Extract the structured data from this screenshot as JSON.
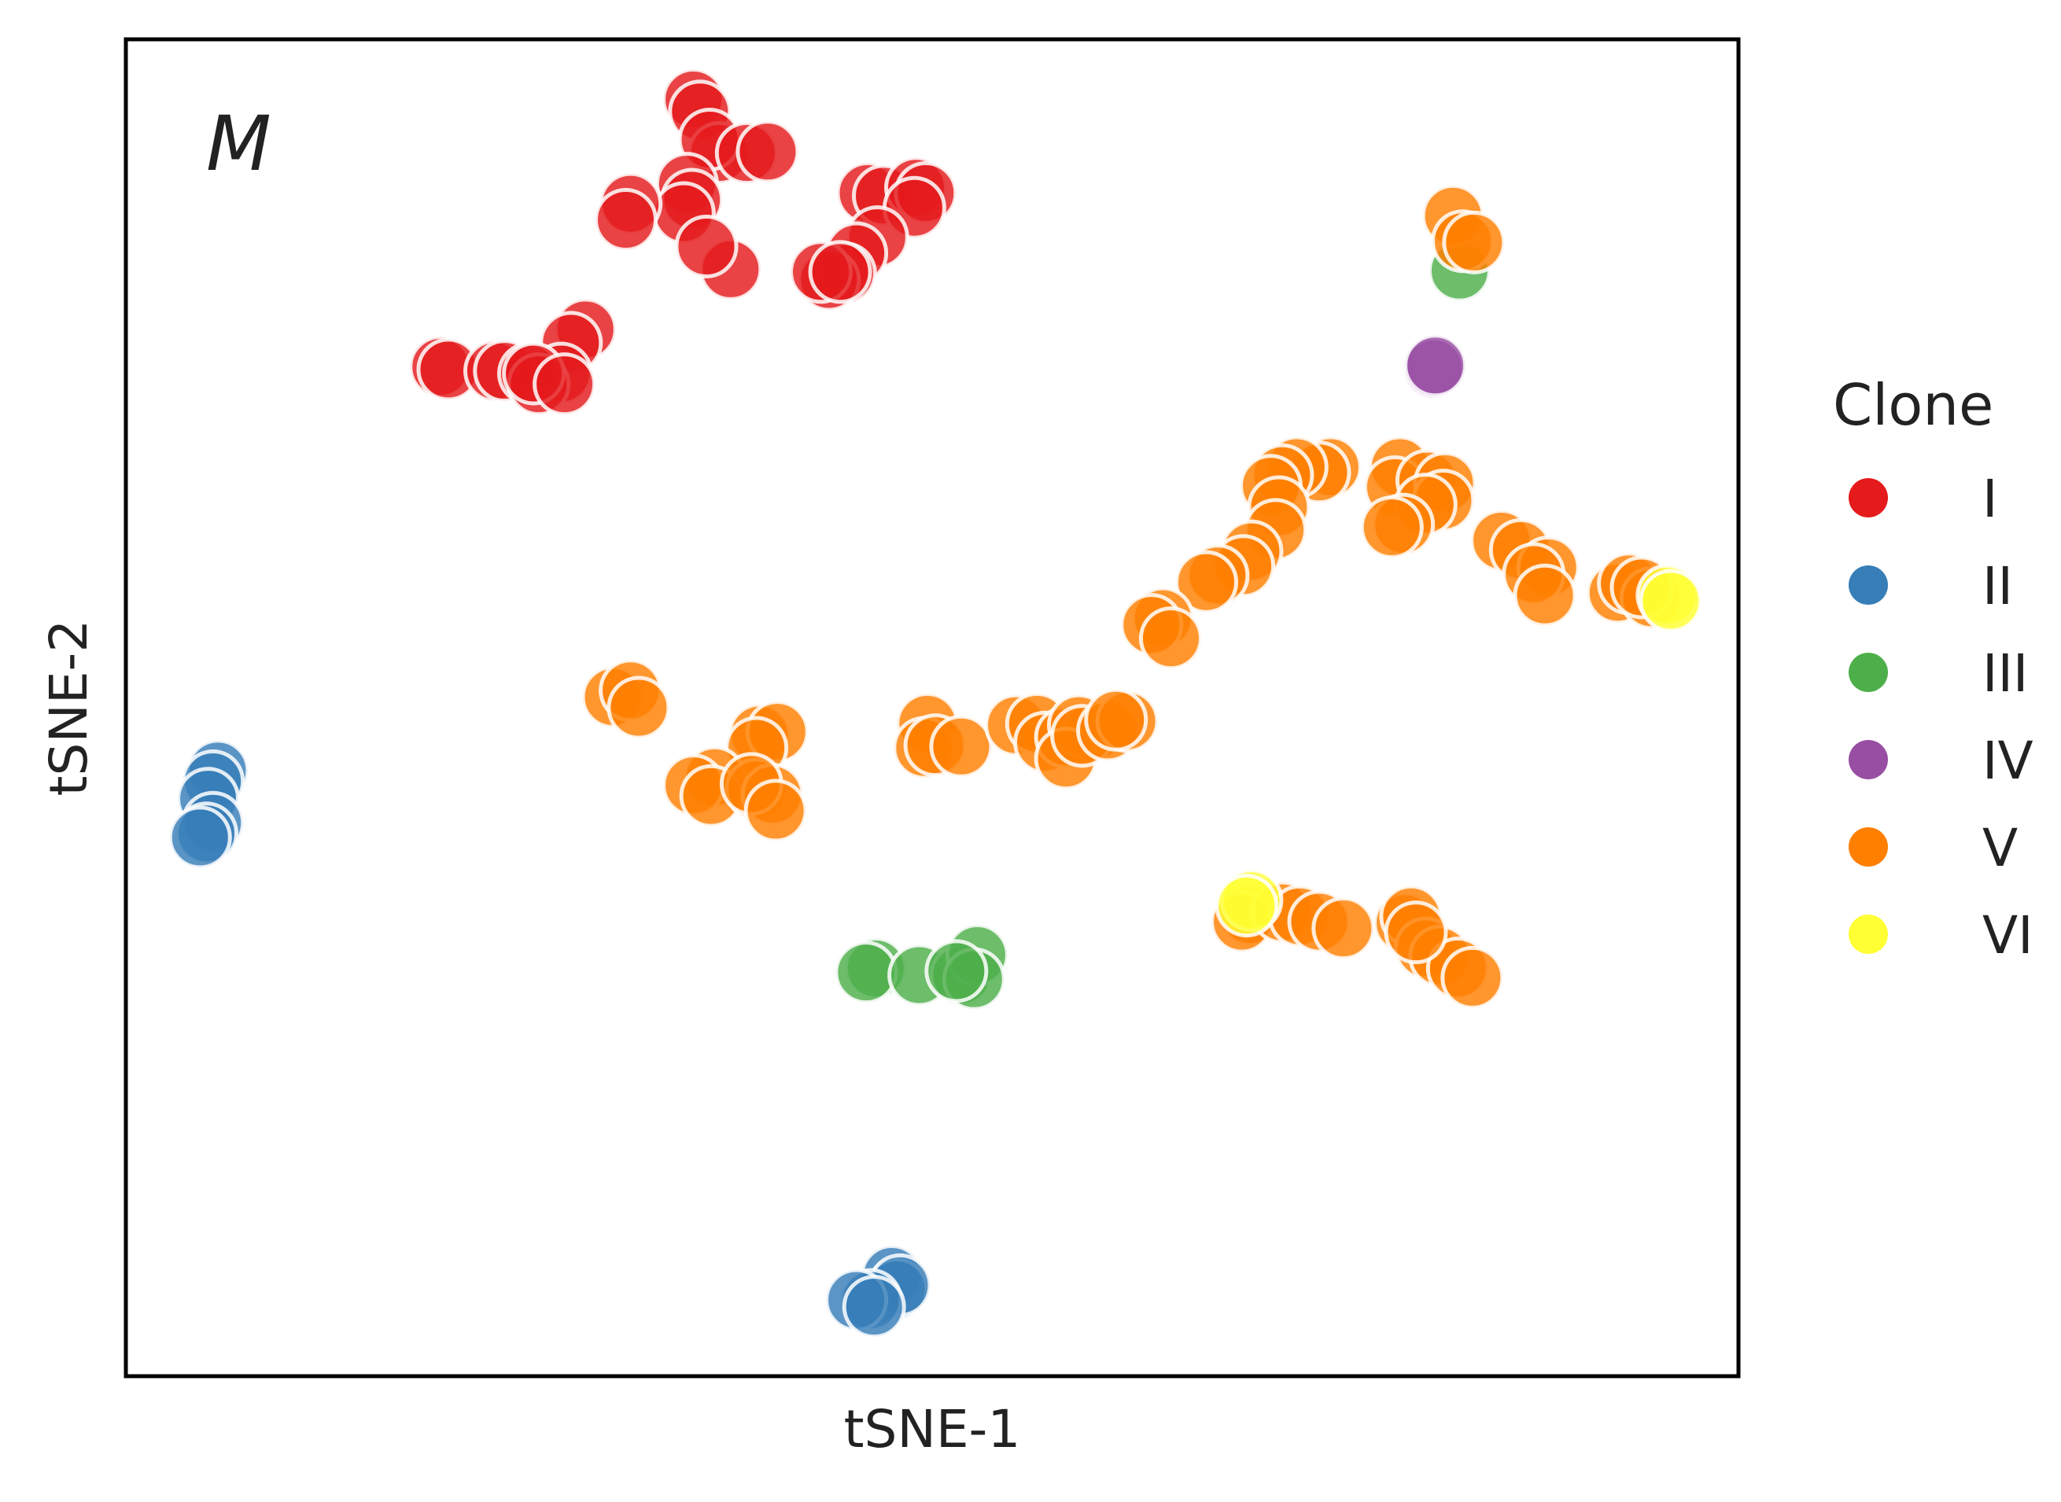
{
  "chart_data": {
    "type": "scatter",
    "panel_label": "M",
    "xlabel": "tSNE-1",
    "ylabel": "tSNE-2",
    "xlim": [
      0,
      100
    ],
    "ylim": [
      0,
      100
    ],
    "ticks": "none",
    "grid": false,
    "legend": {
      "title": "Clone",
      "placement": "right"
    },
    "series": [
      {
        "name": "I",
        "color": "#e41a1c",
        "points": [
          [
            35.2,
            95.5
          ],
          [
            35.6,
            94.6
          ],
          [
            36.8,
            91.5
          ],
          [
            36.2,
            92.5
          ],
          [
            38.5,
            91.5
          ],
          [
            39.8,
            91.6
          ],
          [
            34.8,
            89.2
          ],
          [
            35.1,
            88.0
          ],
          [
            34.6,
            87.0
          ],
          [
            31.3,
            87.7
          ],
          [
            31.0,
            86.5
          ],
          [
            37.5,
            82.8
          ],
          [
            36.0,
            84.5
          ],
          [
            46.0,
            88.5
          ],
          [
            47.0,
            88.3
          ],
          [
            49.0,
            88.9
          ],
          [
            49.6,
            88.5
          ],
          [
            48.9,
            87.4
          ],
          [
            46.6,
            85.2
          ],
          [
            45.3,
            84.0
          ],
          [
            44.6,
            82.5
          ],
          [
            43.6,
            82.0
          ],
          [
            43.1,
            82.6
          ],
          [
            44.3,
            82.6
          ],
          [
            28.5,
            78.3
          ],
          [
            27.6,
            77.3
          ],
          [
            27.0,
            75.0
          ],
          [
            19.5,
            75.5
          ],
          [
            20.0,
            75.3
          ],
          [
            22.9,
            75.2
          ],
          [
            23.5,
            75.2
          ],
          [
            25.0,
            75.0
          ],
          [
            25.6,
            74.2
          ],
          [
            25.3,
            75.0
          ],
          [
            27.2,
            74.2
          ]
        ]
      },
      {
        "name": "II",
        "color": "#377eb8",
        "points": [
          [
            5.7,
            45.3
          ],
          [
            5.4,
            44.5
          ],
          [
            5.1,
            43.2
          ],
          [
            5.4,
            41.4
          ],
          [
            5.0,
            40.6
          ],
          [
            4.6,
            40.3
          ],
          [
            47.5,
            7.5
          ],
          [
            47.8,
            6.5
          ],
          [
            48.0,
            6.8
          ],
          [
            46.2,
            5.7
          ],
          [
            45.3,
            5.7
          ],
          [
            46.4,
            5.2
          ]
        ]
      },
      {
        "name": "III",
        "color": "#4daf4a",
        "points": [
          [
            82.7,
            82.7
          ],
          [
            46.5,
            30.5
          ],
          [
            45.9,
            30.2
          ],
          [
            49.2,
            30.0
          ],
          [
            51.8,
            30.0
          ],
          [
            52.8,
            31.5
          ],
          [
            52.6,
            29.7
          ],
          [
            51.5,
            30.3
          ]
        ]
      },
      {
        "name": "IV",
        "color": "#984ea3",
        "points": [
          [
            81.1,
            75.4
          ],
          [
            81.2,
            75.6
          ]
        ]
      },
      {
        "name": "V",
        "color": "#ff7f00",
        "points": [
          [
            82.3,
            86.8
          ],
          [
            82.9,
            84.9
          ],
          [
            83.6,
            84.8
          ],
          [
            79.0,
            68.0
          ],
          [
            78.7,
            66.5
          ],
          [
            80.7,
            67.0
          ],
          [
            81.8,
            66.8
          ],
          [
            81.7,
            65.5
          ],
          [
            80.6,
            65.2
          ],
          [
            79.2,
            63.7
          ],
          [
            78.5,
            63.5
          ],
          [
            85.3,
            62.5
          ],
          [
            86.5,
            61.8
          ],
          [
            88.2,
            60.5
          ],
          [
            87.3,
            60.0
          ],
          [
            88.0,
            58.4
          ],
          [
            92.5,
            58.6
          ],
          [
            93.2,
            59.3
          ],
          [
            94.6,
            58.2
          ],
          [
            94.0,
            59.0
          ],
          [
            74.7,
            68.0
          ],
          [
            74.0,
            67.6
          ],
          [
            72.6,
            68.0
          ],
          [
            71.7,
            67.4
          ],
          [
            71.0,
            66.6
          ],
          [
            71.5,
            65.0
          ],
          [
            71.3,
            63.3
          ],
          [
            69.8,
            61.7
          ],
          [
            69.3,
            60.6
          ],
          [
            67.7,
            59.9
          ],
          [
            67.0,
            59.4
          ],
          [
            64.3,
            56.7
          ],
          [
            63.6,
            56.2
          ],
          [
            64.8,
            55.2
          ],
          [
            30.2,
            50.8
          ],
          [
            31.3,
            51.3
          ],
          [
            31.8,
            50.0
          ],
          [
            39.3,
            48.0
          ],
          [
            40.4,
            48.2
          ],
          [
            39.1,
            47.0
          ],
          [
            36.5,
            44.8
          ],
          [
            35.2,
            44.2
          ],
          [
            36.3,
            43.4
          ],
          [
            39.1,
            43.9
          ],
          [
            40.1,
            43.5
          ],
          [
            38.8,
            44.3
          ],
          [
            40.3,
            42.3
          ],
          [
            49.7,
            48.8
          ],
          [
            49.5,
            47.0
          ],
          [
            50.2,
            47.2
          ],
          [
            51.8,
            47.1
          ],
          [
            55.2,
            48.7
          ],
          [
            56.5,
            48.8
          ],
          [
            57.0,
            47.4
          ],
          [
            58.3,
            47.8
          ],
          [
            60.0,
            48.2
          ],
          [
            59.1,
            48.7
          ],
          [
            58.3,
            46.2
          ],
          [
            59.3,
            47.9
          ],
          [
            60.9,
            48.3
          ],
          [
            62.1,
            49.0
          ],
          [
            61.4,
            49.1
          ],
          [
            69.7,
            34.5
          ],
          [
            69.2,
            34.0
          ],
          [
            71.7,
            34.7
          ],
          [
            72.8,
            34.4
          ],
          [
            74.0,
            34.0
          ],
          [
            75.5,
            33.5
          ],
          [
            79.3,
            33.9
          ],
          [
            79.7,
            34.4
          ],
          [
            80.6,
            32.0
          ],
          [
            81.5,
            31.4
          ],
          [
            82.6,
            30.5
          ],
          [
            83.5,
            29.8
          ],
          [
            80.0,
            33.2
          ]
        ]
      },
      {
        "name": "VI",
        "color": "#ffff33",
        "points": [
          [
            95.6,
            58.4
          ],
          [
            95.8,
            58.0
          ],
          [
            69.8,
            35.6
          ],
          [
            69.5,
            35.2
          ]
        ]
      }
    ]
  }
}
